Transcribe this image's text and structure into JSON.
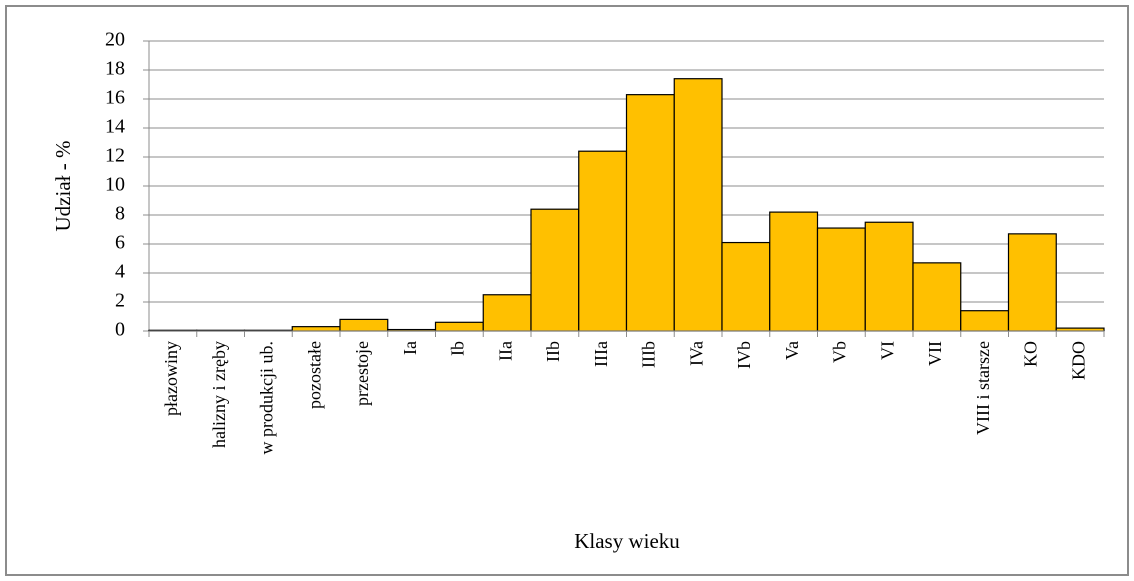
{
  "chart_data": {
    "type": "bar",
    "categories": [
      "płazowiny",
      "halizny i zręby",
      "w produkcji ub.",
      "pozostałe",
      "przestoje",
      "Ia",
      "Ib",
      "IIa",
      "IIb",
      "IIIa",
      "IIIb",
      "IVa",
      "IVb",
      "Va",
      "Vb",
      "VI",
      "VII",
      "VIII i starsze",
      "KO",
      "KDO"
    ],
    "values": [
      0.05,
      0.05,
      0.05,
      0.3,
      0.8,
      0.1,
      0.6,
      2.5,
      8.4,
      12.4,
      16.3,
      17.4,
      6.1,
      8.2,
      7.1,
      7.5,
      4.7,
      1.4,
      6.7,
      0.2
    ],
    "color": "#ffc000",
    "ylim": [
      0,
      20
    ],
    "yticks": [
      0,
      2,
      4,
      6,
      8,
      10,
      12,
      14,
      16,
      18,
      20
    ],
    "grid": true,
    "y_label": "Udział - %",
    "x_label": "Klasy wieku"
  }
}
